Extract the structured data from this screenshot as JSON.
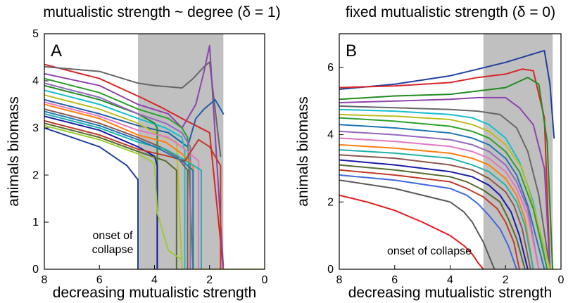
{
  "chart_data": [
    {
      "type": "line",
      "title": "mutualistic strength ~ degree (δ = 1)",
      "panel_label": "A",
      "xlabel": "decreasing mutualistic strength",
      "ylabel": "animals biomass",
      "xlim": [
        8,
        0
      ],
      "ylim": [
        0,
        5
      ],
      "xticks": [
        8,
        6,
        4,
        2,
        0
      ],
      "yticks": [
        0,
        1,
        2,
        3,
        4,
        5
      ],
      "shaded_region": [
        4.6,
        1.5
      ],
      "annotation": "onset of\ncollapse",
      "grid": false,
      "legend": "none",
      "series": [
        {
          "color": "#d62728",
          "x": [
            8,
            6,
            4.5,
            3.8,
            3.0,
            2.5,
            2.0,
            1.5
          ],
          "y": [
            4.35,
            4.05,
            3.65,
            3.45,
            3.2,
            3.05,
            2.9,
            0
          ]
        },
        {
          "color": "#1f3fa0",
          "x": [
            8,
            6,
            5,
            4.6,
            4.6
          ],
          "y": [
            3.0,
            2.6,
            2.2,
            1.9,
            0
          ]
        },
        {
          "color": "#666666",
          "x": [
            8,
            6,
            4.6,
            4,
            3,
            2.6,
            2.2,
            2.0,
            1.6
          ],
          "y": [
            4.3,
            4.2,
            3.95,
            3.9,
            3.85,
            4.05,
            4.3,
            4.4,
            2.4
          ]
        },
        {
          "color": "#8e44ad",
          "x": [
            8,
            6,
            4.6,
            3.5,
            3.0,
            2.5,
            2.2,
            2.0,
            1.5
          ],
          "y": [
            4.15,
            3.9,
            3.5,
            3.3,
            3.0,
            3.5,
            4.2,
            4.75,
            0.05
          ]
        },
        {
          "color": "#1f5fa8",
          "x": [
            8,
            6,
            4.6,
            3.5,
            2.8,
            2.5,
            2.2,
            1.8,
            1.5
          ],
          "y": [
            3.6,
            3.3,
            3.05,
            2.9,
            2.6,
            3.2,
            3.4,
            3.6,
            3.3
          ]
        },
        {
          "color": "#2ca02c",
          "x": [
            8,
            6,
            4.6,
            3.5,
            3.0,
            2.8,
            2.6
          ],
          "y": [
            4.05,
            3.75,
            3.4,
            3.2,
            3.0,
            2.8,
            0
          ]
        },
        {
          "color": "#17becf",
          "x": [
            8,
            6,
            4.6,
            3.6,
            3.0,
            2.9,
            2.9
          ],
          "y": [
            3.8,
            3.5,
            3.2,
            3.0,
            2.8,
            2.5,
            0
          ]
        },
        {
          "color": "#bcbd22",
          "x": [
            8,
            6,
            4.6,
            4.0,
            3.2,
            3.0,
            2.5,
            2.0,
            0
          ],
          "y": [
            3.7,
            3.4,
            3.1,
            2.9,
            2.7,
            0,
            0,
            0,
            0
          ]
        },
        {
          "color": "#228b22",
          "x": [
            8,
            6,
            4.6,
            4.0,
            3.9,
            3.9
          ],
          "y": [
            3.9,
            3.6,
            3.3,
            3.1,
            3.0,
            0
          ]
        },
        {
          "color": "#9467bd",
          "x": [
            8,
            6,
            4.6,
            3.6,
            3.0,
            2.7,
            2.7
          ],
          "y": [
            3.95,
            3.65,
            3.3,
            3.1,
            2.9,
            2.6,
            0
          ]
        },
        {
          "color": "#e377c2",
          "x": [
            8,
            6,
            4.6,
            3.5,
            2.9,
            2.4,
            2.4
          ],
          "y": [
            3.55,
            3.25,
            2.95,
            2.8,
            2.55,
            2.3,
            0
          ]
        },
        {
          "color": "#ff7f0e",
          "x": [
            8,
            6,
            4.6,
            3.6,
            3.0,
            2.6,
            2.6
          ],
          "y": [
            3.5,
            3.2,
            2.85,
            2.7,
            2.45,
            2.2,
            0
          ]
        },
        {
          "color": "#8c564b",
          "x": [
            8,
            6,
            4.6,
            3.8,
            3.2,
            2.8,
            2.8
          ],
          "y": [
            3.4,
            3.1,
            2.8,
            2.6,
            2.4,
            2.1,
            0
          ]
        },
        {
          "color": "#1a1aa6",
          "x": [
            8,
            6,
            4.6,
            4.0,
            3.9,
            3.9
          ],
          "y": [
            3.25,
            2.95,
            2.6,
            2.4,
            2.2,
            0
          ]
        },
        {
          "color": "#20b2aa",
          "x": [
            8,
            6,
            4.6,
            3.6,
            3.0,
            2.3,
            2.3
          ],
          "y": [
            3.3,
            3.0,
            2.7,
            2.55,
            2.35,
            2.1,
            0
          ]
        },
        {
          "color": "#c0392b",
          "x": [
            8,
            6,
            4.6,
            3.5,
            2.9,
            2.4,
            2.0,
            1.6,
            1.6
          ],
          "y": [
            3.15,
            2.85,
            2.55,
            2.4,
            2.3,
            2.75,
            2.6,
            2.2,
            0
          ]
        },
        {
          "color": "#556b2f",
          "x": [
            8,
            6,
            4.6,
            3.6,
            3.2,
            3.2
          ],
          "y": [
            3.1,
            2.8,
            2.5,
            2.3,
            2.1,
            0
          ]
        },
        {
          "color": "#1f77b4",
          "x": [
            8,
            6,
            4.6,
            3.8,
            3.0,
            2.6,
            2.6
          ],
          "y": [
            3.35,
            3.05,
            2.75,
            2.55,
            2.3,
            2.1,
            0
          ]
        },
        {
          "color": "#9acd32",
          "x": [
            8,
            6,
            4.6,
            4.0,
            3.9,
            3.6,
            3.5,
            3.0
          ],
          "y": [
            3.05,
            2.75,
            2.45,
            2.25,
            1.2,
            0.6,
            0.4,
            0.2
          ]
        }
      ]
    },
    {
      "type": "line",
      "title": "fixed mutualistic strength (δ = 0)",
      "panel_label": "B",
      "xlabel": "decreasing mutualistic strength",
      "ylabel": "animals biomass",
      "xlim": [
        8,
        0
      ],
      "ylim": [
        0,
        7
      ],
      "xticks": [
        8,
        6,
        4,
        2,
        0
      ],
      "yticks": [
        0,
        2,
        4,
        6
      ],
      "shaded_region": [
        2.8,
        0.3
      ],
      "annotation": "onset of collapse",
      "grid": false,
      "legend": "none",
      "series": [
        {
          "color": "#1f3fa0",
          "x": [
            8,
            6,
            4,
            3,
            2,
            1,
            0.6,
            0.4,
            0.25
          ],
          "y": [
            5.35,
            5.5,
            5.75,
            5.95,
            6.15,
            6.4,
            6.5,
            5.5,
            3.9
          ]
        },
        {
          "color": "#d62728",
          "x": [
            8,
            6,
            4,
            3,
            2,
            1.4,
            1.0,
            0.6,
            0.4
          ],
          "y": [
            5.4,
            5.45,
            5.55,
            5.7,
            5.8,
            5.95,
            5.9,
            4.5,
            0
          ]
        },
        {
          "color": "#228b22",
          "x": [
            8,
            6,
            4,
            3,
            2,
            1.2,
            0.8,
            0.5,
            0.3
          ],
          "y": [
            5.05,
            5.15,
            5.2,
            5.3,
            5.4,
            5.7,
            5.5,
            3.8,
            0
          ]
        },
        {
          "color": "#8e44ad",
          "x": [
            8,
            6,
            4,
            3,
            2,
            1.5,
            1.0,
            0.6,
            0.4
          ],
          "y": [
            4.95,
            5.0,
            5.05,
            5.1,
            5.1,
            4.8,
            4.3,
            3.0,
            0
          ]
        },
        {
          "color": "#666666",
          "x": [
            8,
            6,
            4,
            3,
            2.2,
            1.6,
            1.2,
            0.8,
            0.4
          ],
          "y": [
            4.85,
            4.8,
            4.75,
            4.7,
            4.6,
            4.2,
            3.5,
            2.2,
            0
          ]
        },
        {
          "color": "#17becf",
          "x": [
            8,
            6,
            4,
            3.2,
            2.6,
            2.0,
            1.5,
            1.0,
            0.5
          ],
          "y": [
            4.75,
            4.7,
            4.6,
            4.5,
            4.3,
            3.9,
            3.2,
            2.0,
            0
          ]
        },
        {
          "color": "#bcbd22",
          "x": [
            8,
            6,
            4,
            3.2,
            2.6,
            2.0,
            1.4,
            1.0,
            0.4
          ],
          "y": [
            4.6,
            4.55,
            4.45,
            4.3,
            4.1,
            3.7,
            3.0,
            1.9,
            0
          ]
        },
        {
          "color": "#2ca02c",
          "x": [
            8,
            6,
            4,
            3.2,
            2.6,
            2.0,
            1.5,
            1.0,
            0.5
          ],
          "y": [
            4.5,
            4.4,
            4.25,
            4.1,
            3.9,
            3.5,
            2.9,
            1.8,
            0
          ]
        },
        {
          "color": "#1f77b4",
          "x": [
            8,
            6,
            4,
            3.2,
            2.6,
            2.0,
            1.6,
            1.2,
            0.6
          ],
          "y": [
            4.3,
            4.2,
            4.05,
            3.9,
            3.7,
            3.3,
            2.8,
            1.9,
            0
          ]
        },
        {
          "color": "#9467bd",
          "x": [
            8,
            6,
            4,
            3.2,
            2.6,
            2.0,
            1.6,
            1.2,
            0.8
          ],
          "y": [
            4.1,
            4.0,
            3.85,
            3.7,
            3.5,
            3.1,
            2.6,
            1.8,
            0
          ]
        },
        {
          "color": "#e377c2",
          "x": [
            8,
            6,
            4,
            3.2,
            2.6,
            2.0,
            1.6,
            1.2,
            0.8
          ],
          "y": [
            3.9,
            3.8,
            3.65,
            3.5,
            3.3,
            2.9,
            2.4,
            1.6,
            0
          ]
        },
        {
          "color": "#ff7f0e",
          "x": [
            8,
            6,
            4,
            3.2,
            2.6,
            2.0,
            1.6,
            1.3,
            1.0
          ],
          "y": [
            3.7,
            3.6,
            3.45,
            3.3,
            3.1,
            2.7,
            2.2,
            1.5,
            0
          ]
        },
        {
          "color": "#20b2aa",
          "x": [
            8,
            6,
            4,
            3.2,
            2.6,
            2.0,
            1.6,
            1.3,
            1.0
          ],
          "y": [
            3.55,
            3.45,
            3.3,
            3.1,
            2.9,
            2.5,
            2.0,
            1.3,
            0
          ]
        },
        {
          "color": "#8c564b",
          "x": [
            8,
            6,
            4,
            3.2,
            2.6,
            2.0,
            1.7,
            1.4,
            1.1
          ],
          "y": [
            3.4,
            3.3,
            3.1,
            2.95,
            2.7,
            2.3,
            1.9,
            1.2,
            0
          ]
        },
        {
          "color": "#1a1aa6",
          "x": [
            8,
            6,
            4,
            3.2,
            2.6,
            2.2,
            1.8,
            1.5,
            1.2
          ],
          "y": [
            3.25,
            3.1,
            2.9,
            2.75,
            2.5,
            2.2,
            1.7,
            1.0,
            0
          ]
        },
        {
          "color": "#556b2f",
          "x": [
            8,
            6,
            4,
            3.4,
            2.8,
            2.2,
            1.9,
            1.6,
            1.3
          ],
          "y": [
            3.1,
            2.95,
            2.75,
            2.6,
            2.35,
            2.0,
            1.5,
            0.9,
            0
          ]
        },
        {
          "color": "#c0392b",
          "x": [
            8,
            6,
            4,
            3.4,
            2.8,
            2.3,
            2.0,
            1.7,
            1.5
          ],
          "y": [
            2.95,
            2.8,
            2.6,
            2.4,
            2.15,
            1.8,
            1.4,
            0.8,
            0
          ]
        },
        {
          "color": "#4169e1",
          "x": [
            8,
            6,
            4,
            3.4,
            3.0,
            2.6,
            2.2,
            1.9,
            1.6
          ],
          "y": [
            2.8,
            2.65,
            2.4,
            2.2,
            1.95,
            1.6,
            1.2,
            0.7,
            0
          ]
        },
        {
          "color": "#e31a1c",
          "x": [
            8,
            7,
            6,
            5,
            4,
            3.5,
            3.2,
            3.0,
            2.8
          ],
          "y": [
            2.2,
            2.0,
            1.75,
            1.4,
            1.0,
            0.7,
            0.45,
            0.2,
            0
          ]
        },
        {
          "color": "#5a5a5a",
          "x": [
            8,
            6,
            4,
            3.5,
            3.2,
            3.0,
            2.8,
            2.6,
            2.4
          ],
          "y": [
            2.65,
            2.4,
            2.0,
            1.7,
            1.4,
            1.1,
            0.8,
            0.4,
            0
          ]
        }
      ]
    }
  ]
}
